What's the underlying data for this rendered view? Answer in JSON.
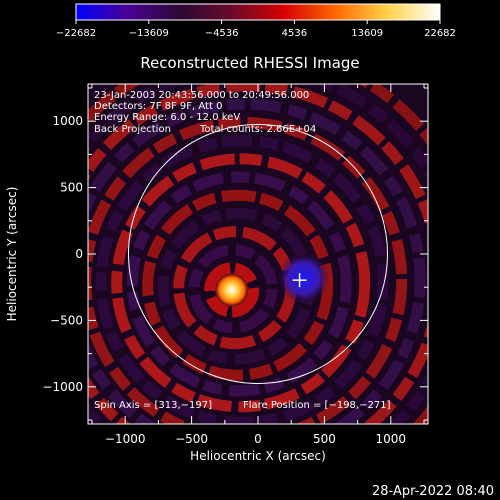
{
  "colorbar": {
    "ticks": [
      "−22682",
      "−13609",
      "−4536",
      "4536",
      "13609",
      "22682"
    ],
    "stops": [
      "#0000ff",
      "#4b0094",
      "#2a0a34",
      "#6a0a2a",
      "#d60000",
      "#ff6a00",
      "#ffd24a",
      "#ffffff"
    ]
  },
  "chart_data": {
    "type": "heatmap",
    "title": "Reconstructed RHESSI Image",
    "xlabel": "Heliocentric X (arcsec)",
    "ylabel": "Heliocentric Y (arcsec)",
    "xlim": [
      -1280,
      1280
    ],
    "ylim": [
      -1280,
      1280
    ],
    "xticks": [
      -1000,
      -500,
      0,
      500,
      1000
    ],
    "yticks": [
      -1000,
      -500,
      0,
      500,
      1000
    ],
    "xtick_labels": [
      "−1000",
      "−500",
      "0",
      "500",
      "1000"
    ],
    "ytick_labels": [
      "−1000",
      "−500",
      "0",
      "500",
      "1000"
    ],
    "clim": [
      -22682,
      22682
    ],
    "solar_disk": {
      "center": [
        0,
        0
      ],
      "radius": 975
    },
    "spin_axis": [
      313,
      -197
    ],
    "flare_position": [
      -198,
      -271
    ],
    "grid": false
  },
  "annotations": {
    "time_range": "23-Jan-2003 20:43:56.000 to 20:49:56.000",
    "detectors": "Detectors: 7F 8F 9F, Att 0",
    "energy": "Energy Range: 6.0 - 12.0 keV",
    "method": "Back Projection",
    "counts": "Total counts: 2.66E+04",
    "spin_axis": "Spin Axis = [313,−197]",
    "flare_position": "Flare Position = [−198,−271]"
  },
  "footer": {
    "timestamp": "28-Apr-2022 08:40"
  }
}
